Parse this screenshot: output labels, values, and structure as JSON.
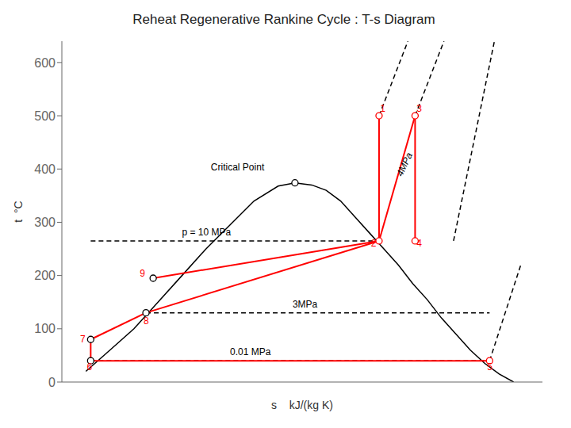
{
  "chart_data": {
    "type": "line",
    "title": "Reheat Regenerative Rankine Cycle : T-s Diagram",
    "xlabel": "s    kJ/(kg K)",
    "ylabel": "t  °C",
    "xlim": [
      0,
      10
    ],
    "ylim": [
      0,
      640
    ],
    "xticks": [
      0,
      2,
      4,
      6,
      8,
      10
    ],
    "yticks": [
      0,
      100,
      200,
      300,
      400,
      500,
      600
    ],
    "tick_labels": "y",
    "grid": false,
    "series": [
      {
        "type": "line",
        "color": "black",
        "line_style": "solid",
        "x": [
          0.5,
          1.0,
          1.5,
          2.0,
          2.5,
          3.0,
          3.5,
          4.0,
          4.5,
          4.85
        ],
        "values": [
          20,
          60,
          100,
          150,
          200,
          250,
          295,
          340,
          368,
          374
        ]
      },
      {
        "type": "line",
        "color": "black",
        "line_style": "solid",
        "x": [
          4.85,
          5.2,
          5.5,
          5.8,
          6.1,
          6.4,
          6.7,
          7.0,
          7.3,
          7.6,
          7.9,
          8.2,
          8.5,
          8.8,
          9.1,
          9.4
        ],
        "values": [
          374,
          370,
          360,
          340,
          310,
          280,
          250,
          220,
          185,
          155,
          120,
          90,
          60,
          35,
          15,
          0
        ]
      },
      {
        "type": "scatter",
        "color": "black",
        "marker": "open_circle",
        "x": [
          4.85
        ],
        "values": [
          374
        ]
      },
      {
        "type": "line",
        "color": "black",
        "line_style": "dashed",
        "x": [
          6.6,
          7.2
        ],
        "values": [
          500,
          640
        ]
      },
      {
        "type": "line",
        "color": "black",
        "line_style": "dashed",
        "x": [
          7.35,
          7.95
        ],
        "values": [
          500,
          640
        ]
      },
      {
        "type": "line",
        "color": "black",
        "line_style": "dashed",
        "x": [
          8.15,
          9.0
        ],
        "values": [
          265,
          640
        ]
      },
      {
        "type": "line",
        "color": "black",
        "line_style": "dashed",
        "x": [
          8.9,
          9.55
        ],
        "values": [
          40,
          220
        ]
      },
      {
        "type": "line",
        "color": "black",
        "line_style": "dashed",
        "x": [
          0.6,
          6.6
        ],
        "values": [
          265,
          265
        ]
      },
      {
        "type": "line",
        "color": "black",
        "line_style": "dashed",
        "x": [
          1.75,
          8.9
        ],
        "values": [
          130,
          130
        ]
      },
      {
        "type": "line",
        "color": "black",
        "line_style": "dashed",
        "x": [
          0.6,
          8.9
        ],
        "values": [
          40,
          40
        ]
      },
      {
        "type": "line",
        "color": "red",
        "line_style": "solid",
        "x": [
          6.6,
          6.6
        ],
        "values": [
          500,
          265
        ]
      },
      {
        "type": "line",
        "color": "red",
        "line_style": "solid",
        "x": [
          6.6,
          7.35
        ],
        "values": [
          265,
          500
        ]
      },
      {
        "type": "line",
        "color": "red",
        "line_style": "solid",
        "x": [
          7.35,
          7.35
        ],
        "values": [
          500,
          265
        ]
      },
      {
        "type": "line",
        "color": "red",
        "line_style": "solid",
        "x": [
          8.9,
          0.6
        ],
        "values": [
          40,
          40
        ]
      },
      {
        "type": "line",
        "color": "red",
        "line_style": "solid",
        "x": [
          0.6,
          0.6
        ],
        "values": [
          40,
          80
        ]
      },
      {
        "type": "line",
        "color": "red",
        "line_style": "solid",
        "x": [
          0.6,
          1.75
        ],
        "values": [
          80,
          130
        ]
      },
      {
        "type": "line",
        "color": "red",
        "line_style": "solid",
        "x": [
          1.75,
          6.6
        ],
        "values": [
          130,
          265
        ]
      },
      {
        "type": "line",
        "color": "red",
        "line_style": "solid",
        "x": [
          1.9,
          6.6
        ],
        "values": [
          195,
          265
        ]
      },
      {
        "type": "scatter",
        "color": "red",
        "marker": "open_circle",
        "x": [
          6.6,
          6.6,
          7.35,
          7.35,
          8.9
        ],
        "values": [
          500,
          265,
          500,
          265,
          40
        ]
      },
      {
        "type": "scatter",
        "color": "black",
        "marker": "open_circle",
        "x": [
          0.6,
          0.6,
          1.75,
          1.9
        ],
        "values": [
          40,
          80,
          130,
          195
        ]
      }
    ],
    "annotations": [
      {
        "text": "Critical Point",
        "x": 3.1,
        "y": 398,
        "color": "black"
      },
      {
        "text": "p = 10 MPa",
        "x": 2.5,
        "y": 275,
        "color": "black"
      },
      {
        "text": "3MPa",
        "x": 4.8,
        "y": 140,
        "color": "black"
      },
      {
        "text": "0.01 MPa",
        "x": 3.5,
        "y": 50,
        "color": "black"
      },
      {
        "text": "1",
        "x": 6.62,
        "y": 508,
        "color": "red"
      },
      {
        "text": "2",
        "x": 6.43,
        "y": 255,
        "color": "red"
      },
      {
        "text": "3",
        "x": 7.38,
        "y": 508,
        "color": "red"
      },
      {
        "text": "4",
        "x": 7.38,
        "y": 255,
        "color": "red"
      },
      {
        "text": "5",
        "x": 8.85,
        "y": 22,
        "color": "red"
      },
      {
        "text": "6",
        "x": 0.52,
        "y": 22,
        "color": "red"
      },
      {
        "text": "7",
        "x": 0.38,
        "y": 74,
        "color": "red"
      },
      {
        "text": "8",
        "x": 1.7,
        "y": 108,
        "color": "red"
      },
      {
        "text": "9",
        "x": 1.62,
        "y": 198,
        "color": "red"
      }
    ],
    "line_label": {
      "text": "4MPa",
      "x": 7.08,
      "y": 385,
      "color": "black"
    }
  }
}
